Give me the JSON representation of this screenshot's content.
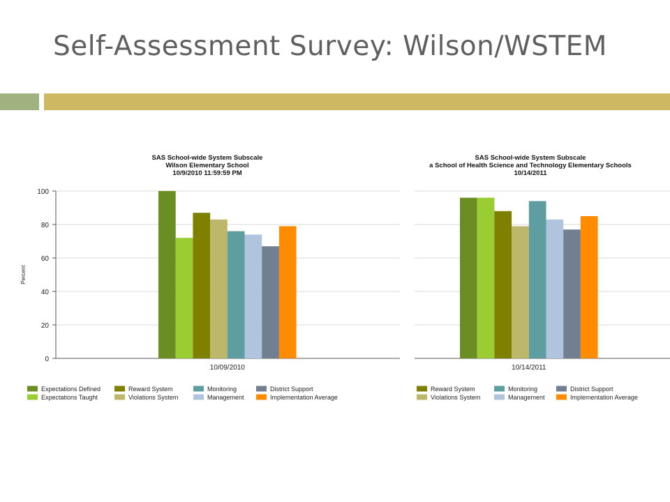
{
  "slide": {
    "title": "Self-Assessment Survey: Wilson/WSTEM",
    "colors": {
      "title": "#5f5f5f",
      "band_left": "#9fb27f",
      "band_right": "#cfb862"
    }
  },
  "chart_data": [
    {
      "type": "bar",
      "title_lines": [
        "SAS School-wide System Subscale",
        "Wilson Elementary School",
        "10/9/2010 11:59:59 PM"
      ],
      "ylabel": "Percent",
      "ylim": [
        0,
        100
      ],
      "yticks": [
        0,
        20,
        40,
        60,
        80,
        100
      ],
      "grid": true,
      "categories": [
        "10/09/2010"
      ],
      "legend_position": "bottom",
      "series": [
        {
          "name": "Expectations Defined",
          "color": "#6b8e23",
          "values": [
            100
          ]
        },
        {
          "name": "Expectations Taught",
          "color": "#9acd32",
          "values": [
            72
          ]
        },
        {
          "name": "Reward System",
          "color": "#808000",
          "values": [
            87
          ]
        },
        {
          "name": "Violations System",
          "color": "#bdb76b",
          "values": [
            83
          ]
        },
        {
          "name": "Monitoring",
          "color": "#5f9ea0",
          "values": [
            76
          ]
        },
        {
          "name": "Management",
          "color": "#b0c4de",
          "values": [
            74
          ]
        },
        {
          "name": "District Support",
          "color": "#708090",
          "values": [
            67
          ]
        },
        {
          "name": "Implementation Average",
          "color": "#ff8c00",
          "values": [
            79
          ]
        }
      ]
    },
    {
      "type": "bar",
      "title_lines": [
        "SAS School-wide System Subscale",
        "a School of Health Science and Technology Elementary Schools",
        "10/14/2011"
      ],
      "ylim": [
        0,
        100
      ],
      "grid": true,
      "categories": [
        "10/14/2011"
      ],
      "legend_position": "bottom",
      "series": [
        {
          "color": "#6b8e23",
          "values": [
            96
          ]
        },
        {
          "color": "#9acd32",
          "values": [
            96
          ]
        },
        {
          "name": "Reward System",
          "color": "#808000",
          "values": [
            88
          ]
        },
        {
          "name": "Violations System",
          "color": "#bdb76b",
          "values": [
            79
          ]
        },
        {
          "name": "Monitoring",
          "color": "#5f9ea0",
          "values": [
            94
          ]
        },
        {
          "name": "Management",
          "color": "#b0c4de",
          "values": [
            83
          ]
        },
        {
          "name": "District Support",
          "color": "#708090",
          "values": [
            77
          ]
        },
        {
          "name": "Implementation Average",
          "color": "#ff8c00",
          "values": [
            85
          ]
        }
      ]
    }
  ]
}
